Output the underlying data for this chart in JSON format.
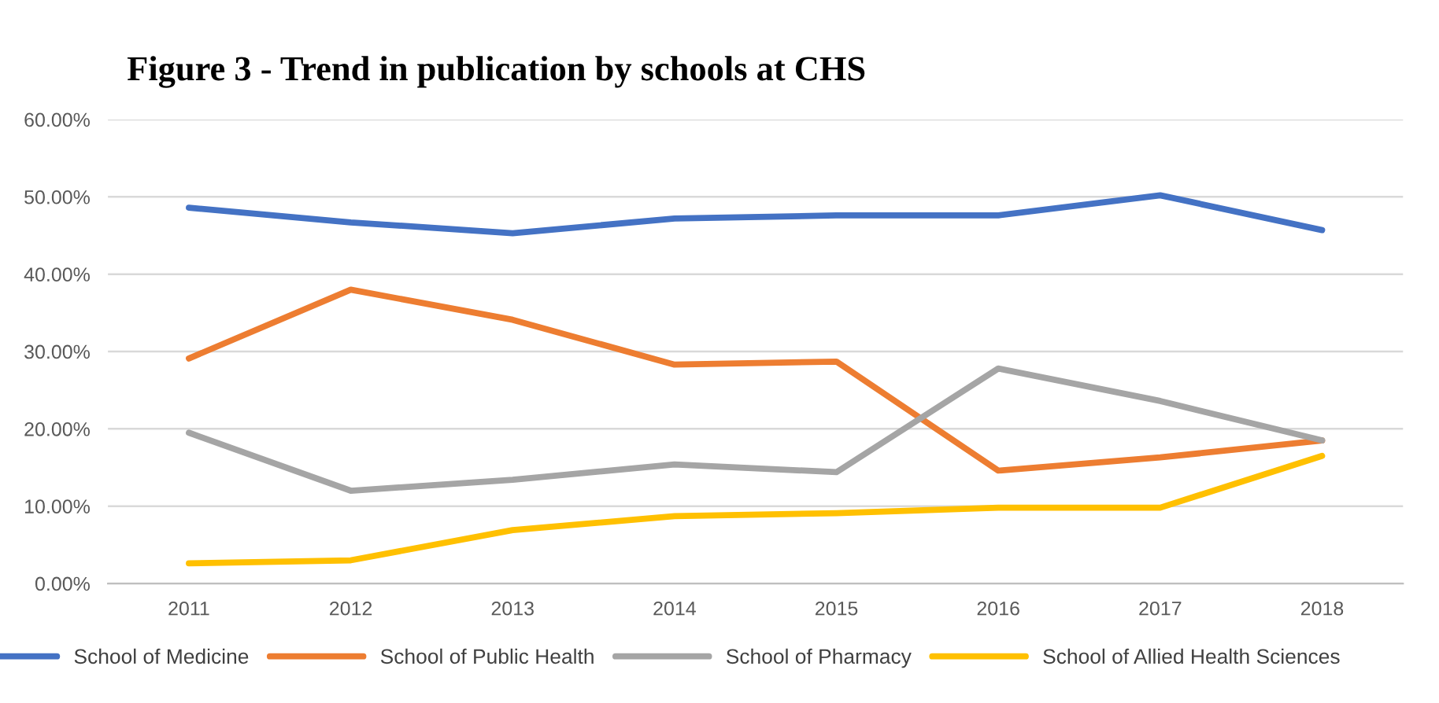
{
  "chart_data": {
    "type": "line",
    "title": "Figure 3 - Trend in publication by schools at CHS",
    "categories": [
      "2011",
      "2012",
      "2013",
      "2014",
      "2015",
      "2016",
      "2017",
      "2018"
    ],
    "series": [
      {
        "name": "School of Medicine",
        "color": "#4472c4",
        "values": [
          48.6,
          46.7,
          45.3,
          47.2,
          47.6,
          47.6,
          50.2,
          45.7
        ]
      },
      {
        "name": "School of Public Health",
        "color": "#ed7d31",
        "values": [
          29.1,
          38.0,
          34.1,
          28.3,
          28.7,
          14.6,
          16.3,
          18.5
        ]
      },
      {
        "name": "School of Pharmacy",
        "color": "#a5a5a5",
        "values": [
          19.5,
          12.0,
          13.4,
          15.4,
          14.4,
          27.8,
          23.6,
          18.5
        ]
      },
      {
        "name": "School of Allied Health Sciences",
        "color": "#ffc000",
        "values": [
          2.6,
          3.0,
          6.9,
          8.7,
          9.1,
          9.8,
          9.8,
          16.5
        ]
      }
    ],
    "ylim": [
      0,
      60
    ],
    "yticks": [
      {
        "value": 0,
        "label": "0.00%"
      },
      {
        "value": 10,
        "label": "10.00%"
      },
      {
        "value": 20,
        "label": "20.00%"
      },
      {
        "value": 30,
        "label": "30.00%"
      },
      {
        "value": 40,
        "label": "40.00%"
      },
      {
        "value": 50,
        "label": "50.00%"
      },
      {
        "value": 60,
        "label": "60.00%"
      }
    ],
    "grid": "y",
    "legend": "bottom",
    "marker": "none",
    "line_style": "solid"
  }
}
